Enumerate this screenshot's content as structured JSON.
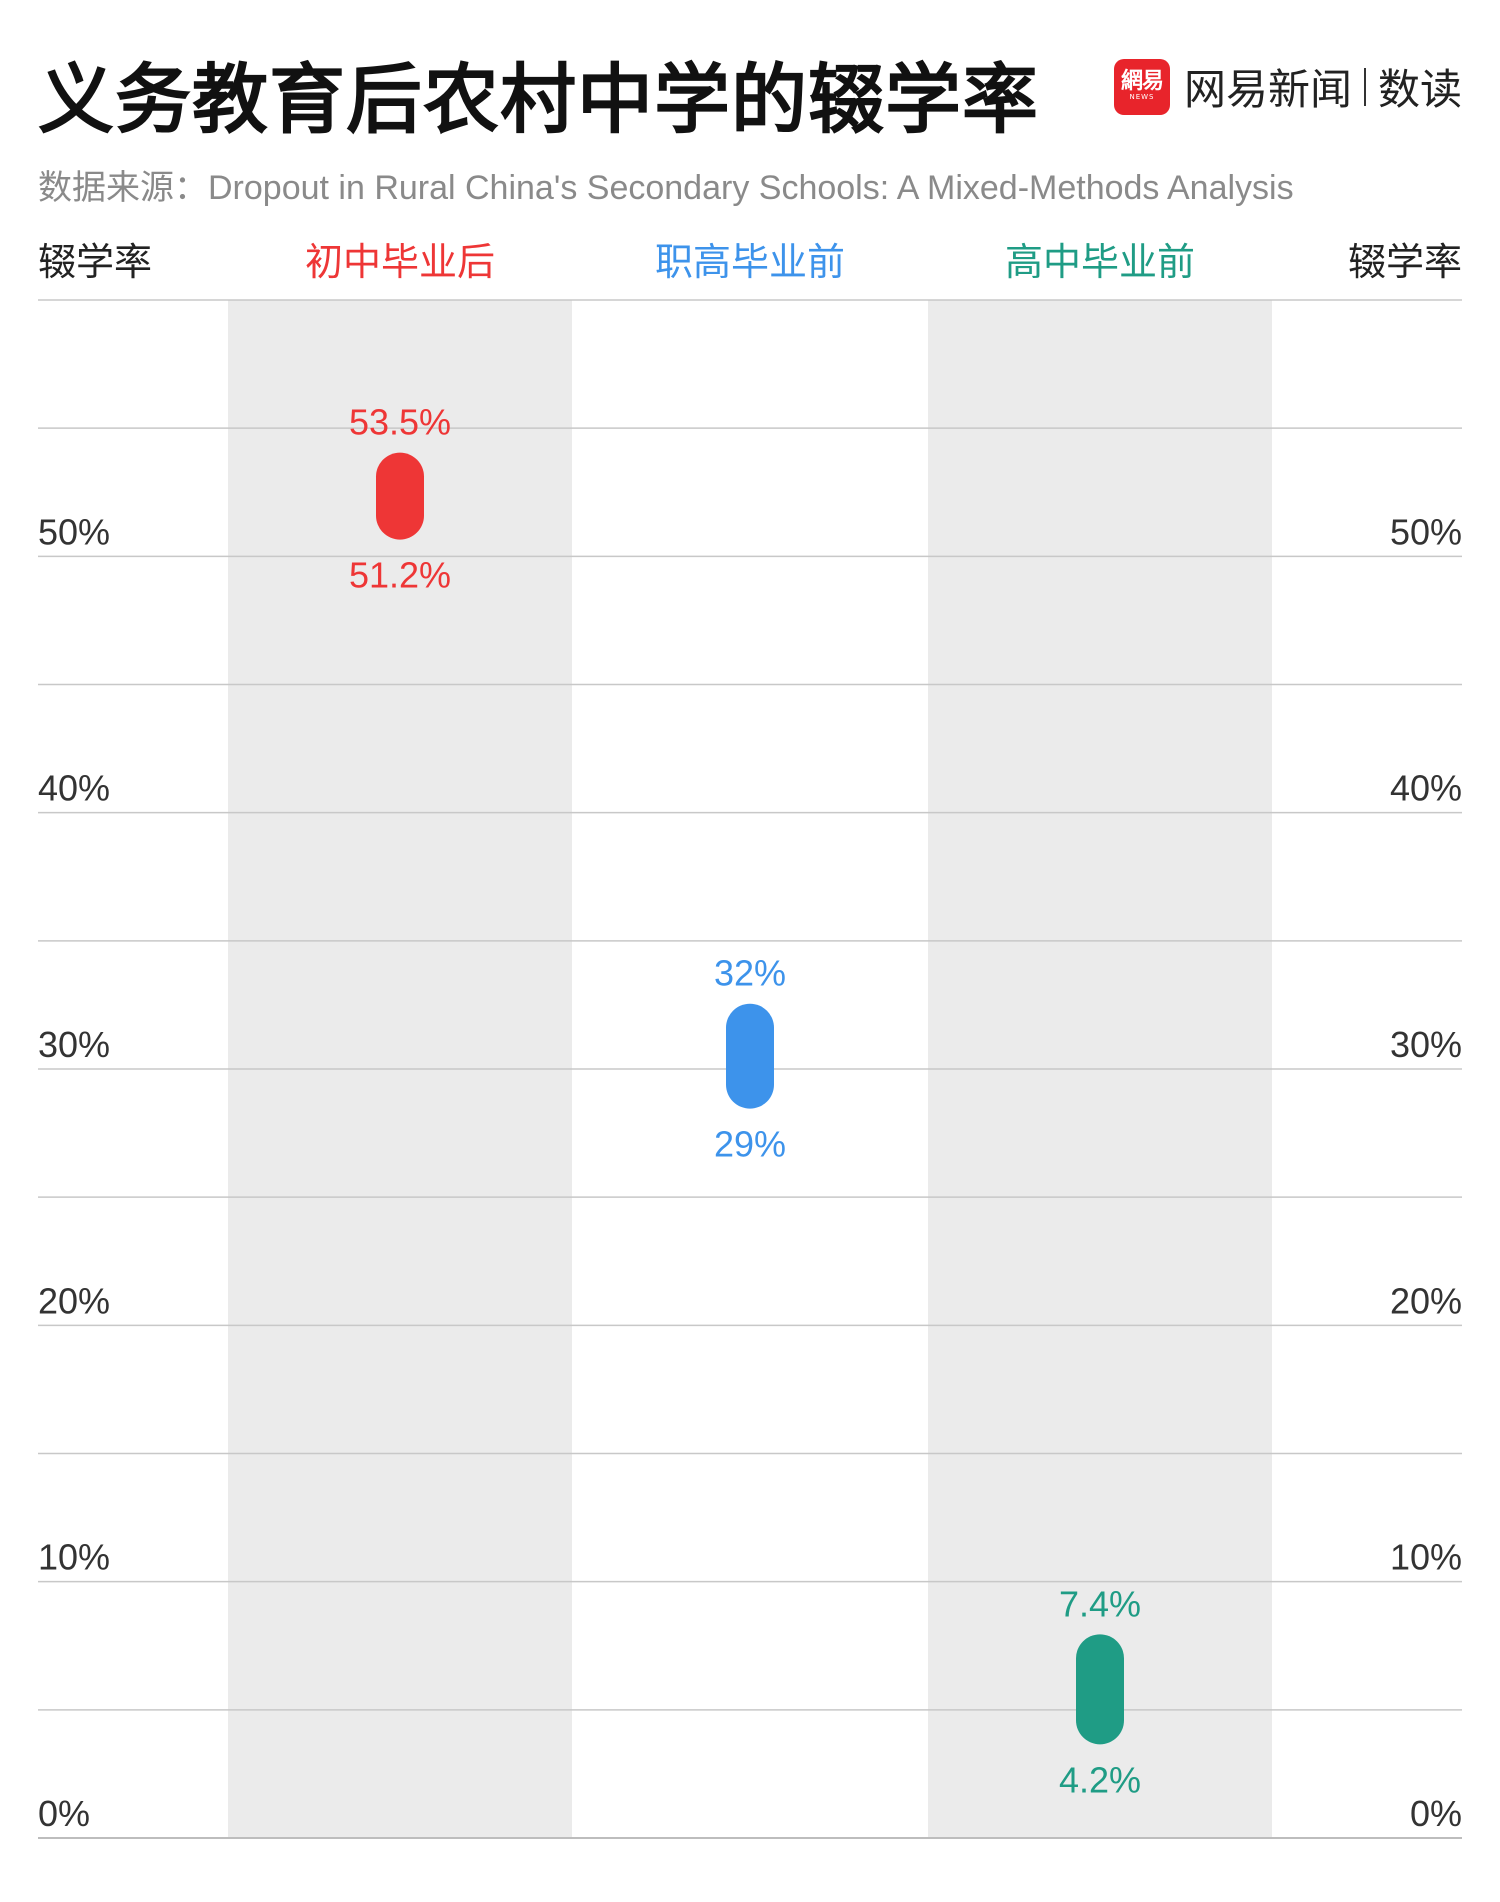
{
  "title": "义务教育后农村中学的辍学率",
  "brand": {
    "badge_main": "網易",
    "badge_sub": "NEWS",
    "name": "网易新闻",
    "section": "数读"
  },
  "source": "数据来源：Dropout in Rural China's Secondary Schools: A Mixed-Methods Analysis",
  "chart_data": {
    "type": "range",
    "title": "义务教育后农村中学的辍学率",
    "ylabel_left": "辍学率",
    "ylabel_right": "辍学率",
    "ylim": [
      0,
      60
    ],
    "yticks": [
      0,
      10,
      20,
      30,
      40,
      50
    ],
    "ytick_labels": [
      "0%",
      "10%",
      "20%",
      "30%",
      "40%",
      "50%"
    ],
    "grid": true,
    "categories": [
      "初中毕业后",
      "职高毕业前",
      "高中毕业前"
    ],
    "ranges": [
      {
        "category": "初中毕业后",
        "low": 51.2,
        "high": 53.5,
        "low_label": "51.2%",
        "high_label": "53.5%",
        "color": "#ee3636",
        "band": true
      },
      {
        "category": "职高毕业前",
        "low": 29,
        "high": 32,
        "low_label": "29%",
        "high_label": "32%",
        "color": "#3d93eb",
        "band": false
      },
      {
        "category": "高中毕业前",
        "low": 4.2,
        "high": 7.4,
        "low_label": "4.2%",
        "high_label": "7.4%",
        "color": "#1f9c85",
        "band": true
      }
    ]
  }
}
